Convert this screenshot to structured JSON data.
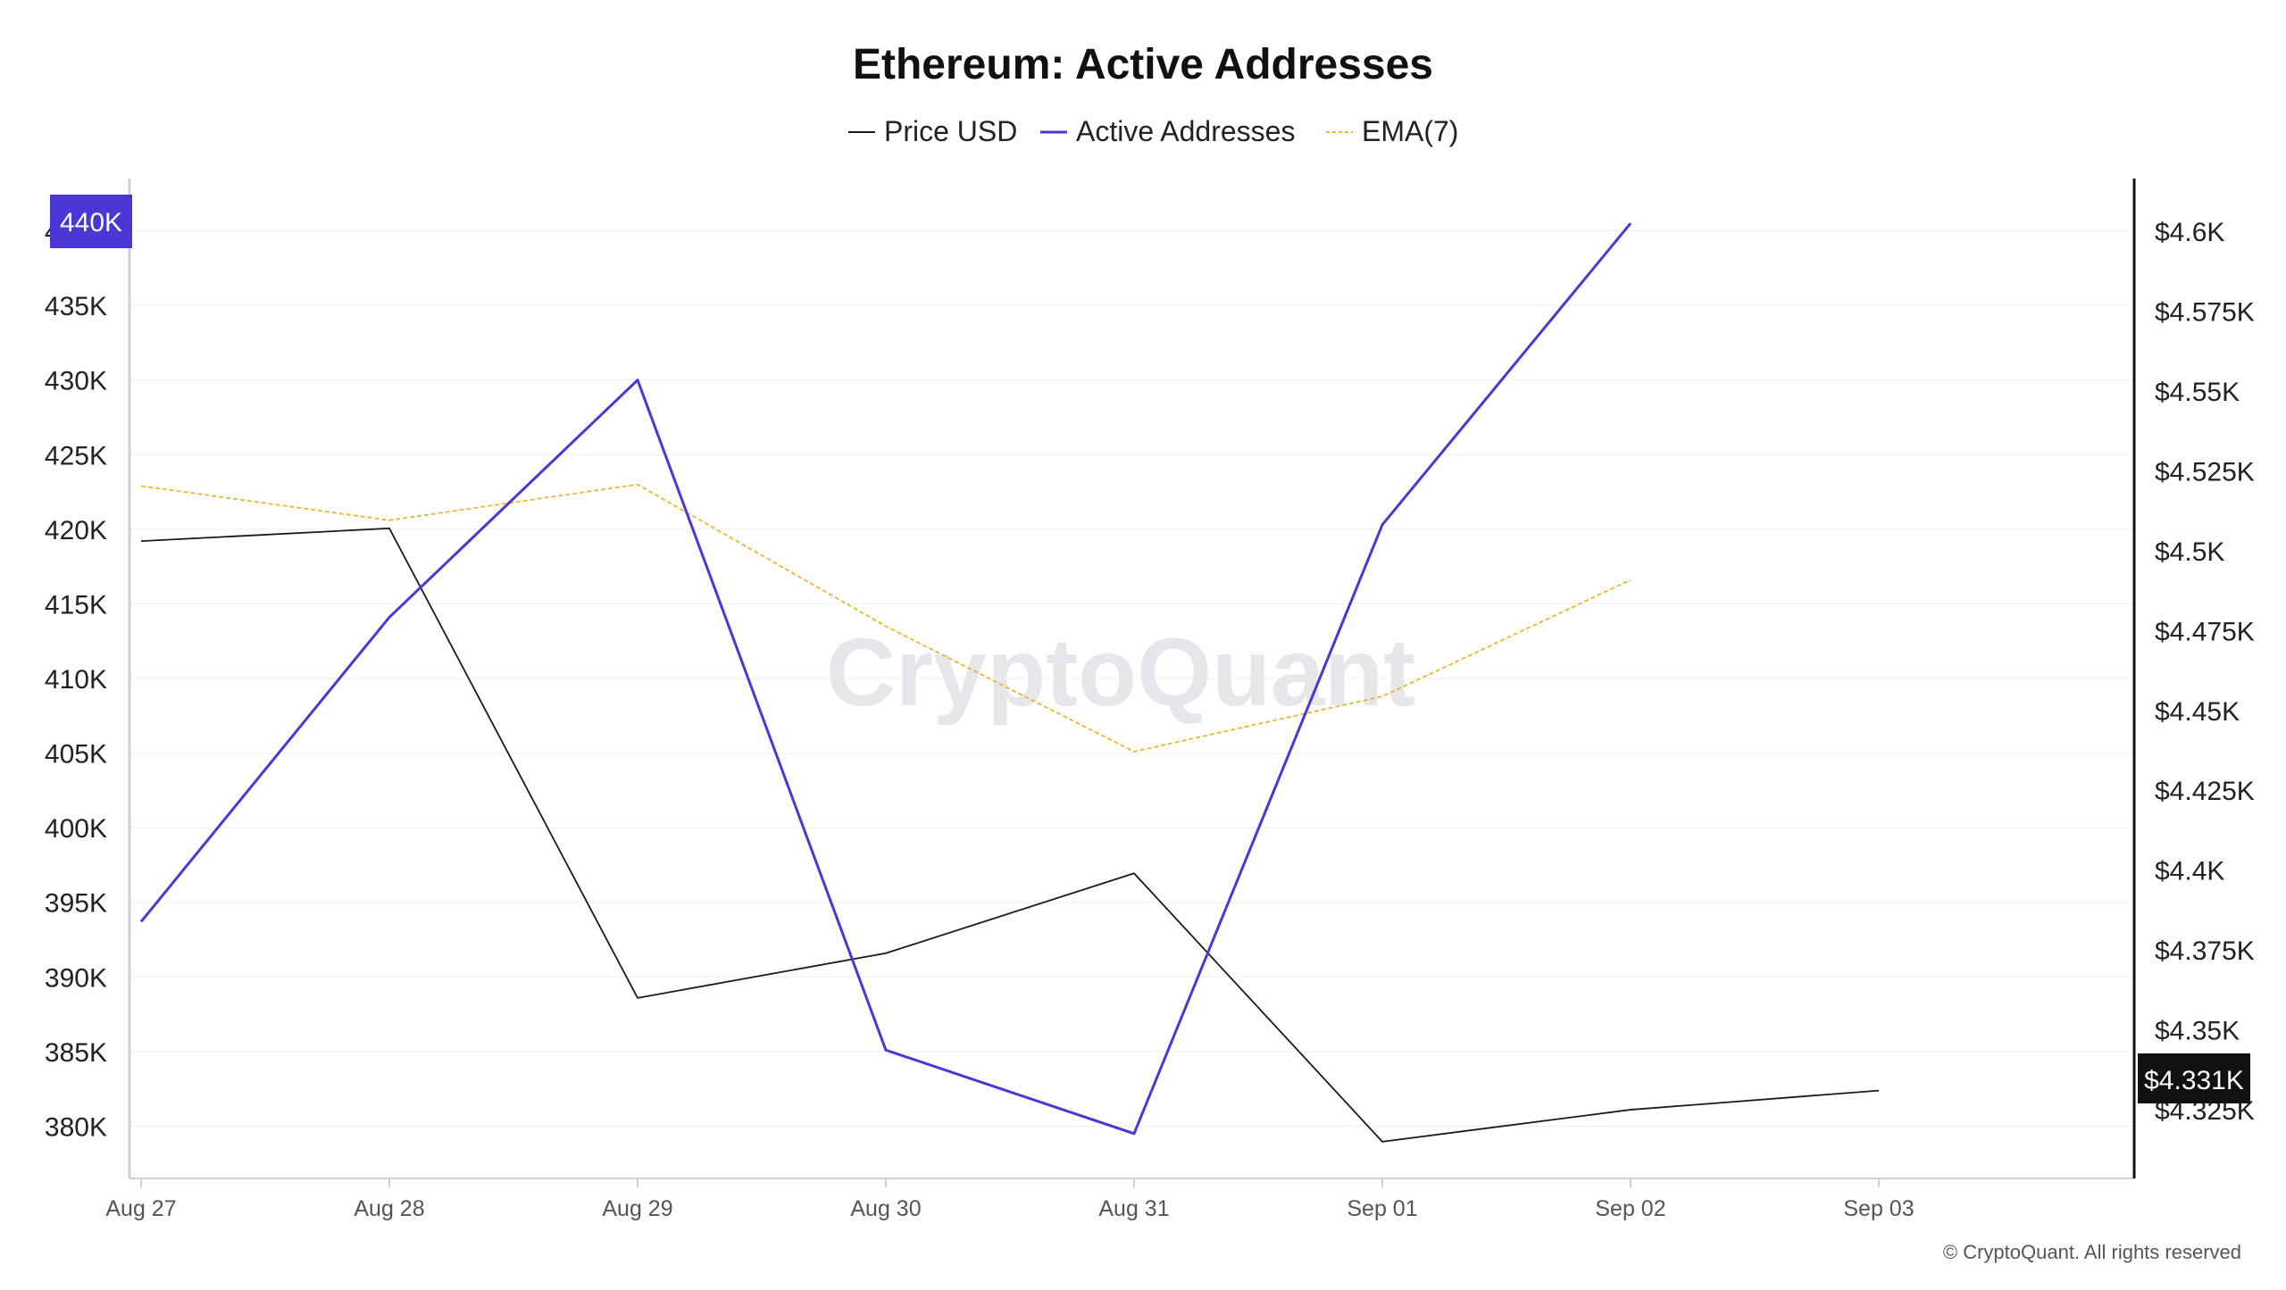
{
  "title": "Ethereum: Active Addresses",
  "watermark": "CryptoQuant",
  "copyright": "© CryptoQuant. All rights reserved",
  "colors": {
    "price": "#1a1a1a",
    "active": "#4b36d6",
    "ema": "#e8b830",
    "left_badge_bg": "#4b36d6",
    "right_badge_bg": "#111111",
    "grid": "#f0f0f0",
    "axis": "#d0d0d0"
  },
  "left_badge_label": "440K",
  "right_badge_label": "$4.331K",
  "chart_data": {
    "type": "line",
    "title": "Ethereum: Active Addresses",
    "categories": [
      "Aug 27",
      "Aug 28",
      "Aug 29",
      "Aug 30",
      "Aug 31",
      "Sep 01",
      "Sep 02",
      "Sep 03"
    ],
    "left_axis": {
      "ylim": [
        376500,
        443500
      ],
      "ticks": [
        380000,
        385000,
        390000,
        395000,
        400000,
        405000,
        410000,
        415000,
        420000,
        425000,
        430000,
        435000,
        440000
      ],
      "tick_labels": [
        "380K",
        "385K",
        "390K",
        "395K",
        "400K",
        "405K",
        "410K",
        "415K",
        "420K",
        "425K",
        "430K",
        "435K",
        "440K"
      ]
    },
    "right_axis": {
      "ylim": [
        4.3035,
        4.6165
      ],
      "ticks": [
        4.325,
        4.35,
        4.375,
        4.4,
        4.425,
        4.45,
        4.475,
        4.5,
        4.525,
        4.55,
        4.575,
        4.6
      ],
      "tick_labels": [
        "$4.325K",
        "$4.35K",
        "$4.375K",
        "$4.4K",
        "$4.425K",
        "$4.45K",
        "$4.475K",
        "$4.5K",
        "$4.525K",
        "$4.55K",
        "$4.575K",
        "$4.6K"
      ]
    },
    "series": [
      {
        "name": "Price USD",
        "axis": "right",
        "style": "solid",
        "values": [
          4.503,
          4.507,
          4.36,
          4.374,
          4.399,
          4.315,
          4.325,
          4.331
        ]
      },
      {
        "name": "Active Addresses",
        "axis": "left",
        "style": "solid",
        "values": [
          393700,
          414100,
          430000,
          385100,
          379500,
          420300,
          440500,
          null
        ]
      },
      {
        "name": "EMA(7)",
        "axis": "left",
        "style": "dashed",
        "values": [
          422900,
          420600,
          423000,
          413500,
          405100,
          408800,
          416600,
          null
        ]
      }
    ],
    "grid": true,
    "legend_position": "top-center"
  }
}
